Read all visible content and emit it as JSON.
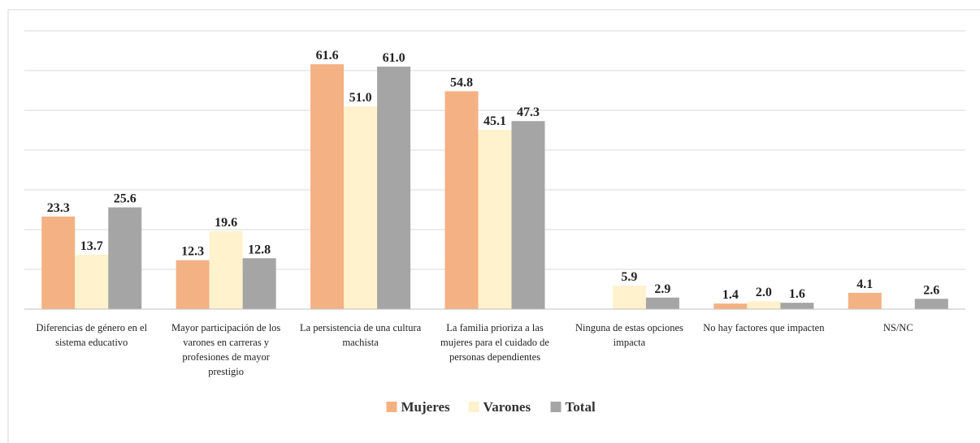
{
  "chart_data": {
    "type": "bar",
    "categories": [
      "Diferencias de género en el sistema educativo",
      "Mayor participación de los varones en carreras y profesiones de mayor prestigio",
      "La persistencia de una cultura machista",
      "La familia prioriza a las mujeres para el cuidado de personas dependientes",
      "Ninguna de estas opciones impacta",
      "No hay factores que impacten",
      "NS/NC"
    ],
    "series": [
      {
        "name": "Mujeres",
        "color": "#F4B183",
        "values": [
          23.3,
          12.3,
          61.6,
          54.8,
          null,
          1.4,
          4.1
        ],
        "value_labels": [
          "23.3",
          "12.3",
          "61.6",
          "54.8",
          null,
          "1.4",
          "4.1"
        ]
      },
      {
        "name": "Varones",
        "color": "#FFF2CC",
        "values": [
          13.7,
          19.6,
          51.0,
          45.1,
          5.9,
          2.0,
          null
        ],
        "value_labels": [
          "13.7",
          "19.6",
          "51.0",
          "45.1",
          "5.9",
          "2.0",
          null
        ]
      },
      {
        "name": "Total",
        "color": "#A5A5A5",
        "values": [
          25.6,
          12.8,
          61.0,
          47.3,
          2.9,
          1.6,
          2.6
        ],
        "value_labels": [
          "25.6",
          "12.8",
          "61.0",
          "47.3",
          "2.9",
          "1.6",
          "2.6"
        ]
      }
    ],
    "ylim": [
      0,
      70
    ],
    "yticks": [
      0,
      10,
      20,
      30,
      40,
      50,
      60,
      70
    ],
    "grid": true,
    "legend": "bottom"
  }
}
